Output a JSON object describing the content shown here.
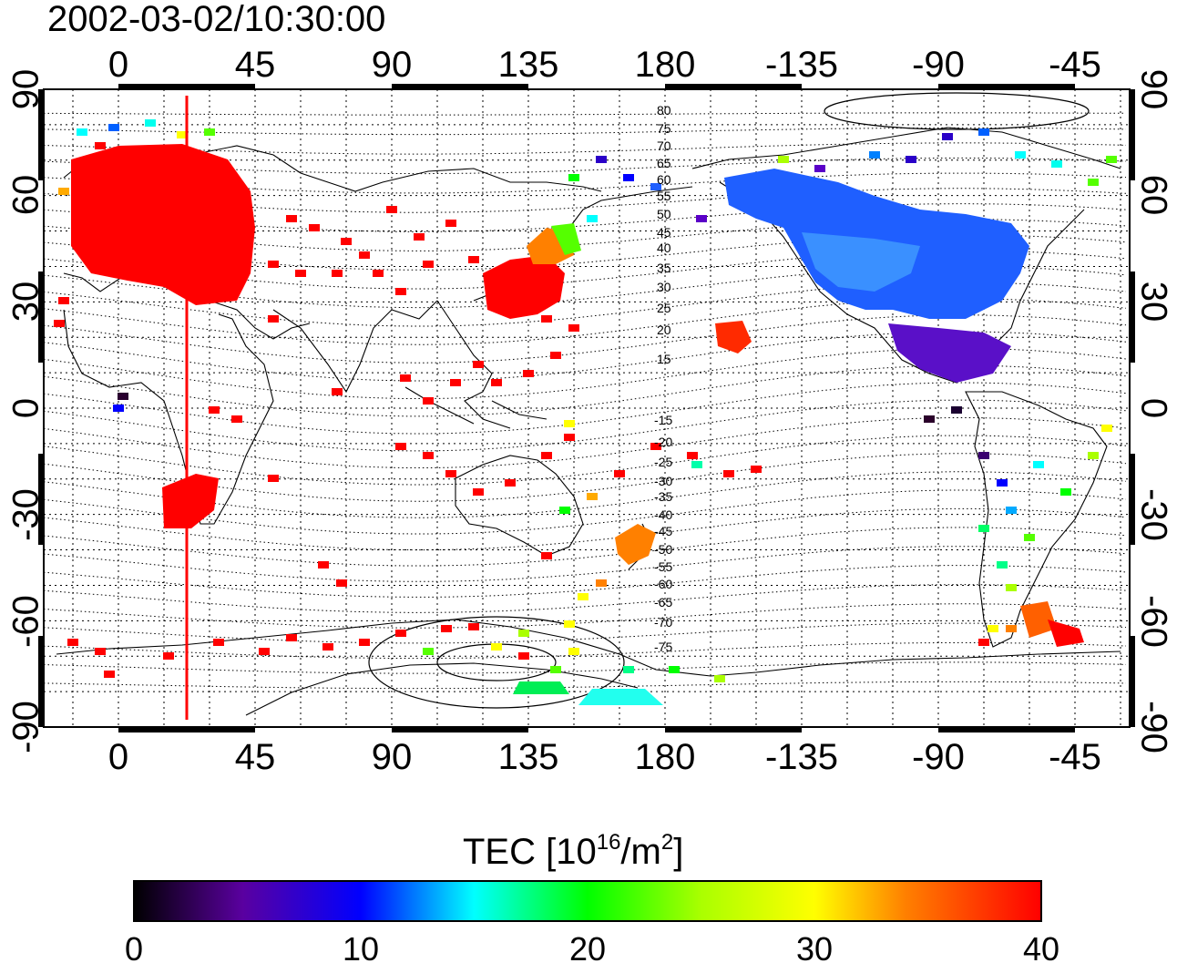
{
  "title": "2002-03-02/10:30:00",
  "map": {
    "top_ticks": [
      "0",
      "45",
      "90",
      "135",
      "180",
      "-135",
      "-90",
      "-45"
    ],
    "bottom_ticks": [
      "0",
      "45",
      "90",
      "135",
      "180",
      "-135",
      "-90",
      "-45"
    ],
    "left_ticks": [
      "90",
      "60",
      "30",
      "0",
      "-30",
      "-60",
      "-90"
    ],
    "right_ticks": [
      "90",
      "60",
      "30",
      "0",
      "-30",
      "-60",
      "-90"
    ],
    "contour_labels_north": [
      "80",
      "75",
      "70",
      "65",
      "60",
      "55",
      "50",
      "45",
      "40",
      "35",
      "30",
      "25",
      "20",
      "15"
    ],
    "contour_labels_south": [
      "-15",
      "-20",
      "-25",
      "-30",
      "-35",
      "-40",
      "-45",
      "-50",
      "-55",
      "-60",
      "-65",
      "-70",
      "-75"
    ],
    "terminator_longitude": 22.5,
    "grid": true
  },
  "colorbar": {
    "label_main": "TEC  [10",
    "label_exp1": "16",
    "label_mid": "/m",
    "label_exp2": "2",
    "label_end": "]",
    "ticks": [
      "0",
      "10",
      "20",
      "30",
      "40"
    ],
    "range": [
      0,
      40
    ],
    "colors": [
      "#000000",
      "#5a00a0",
      "#0000ff",
      "#00ffff",
      "#00ff00",
      "#ffff00",
      "#ff8000",
      "#ff0000"
    ]
  },
  "colors": {
    "dense_region_eurasia": "#ff0000",
    "dense_region_north_america": "#1f5fff",
    "terminator": "#ff0000"
  }
}
